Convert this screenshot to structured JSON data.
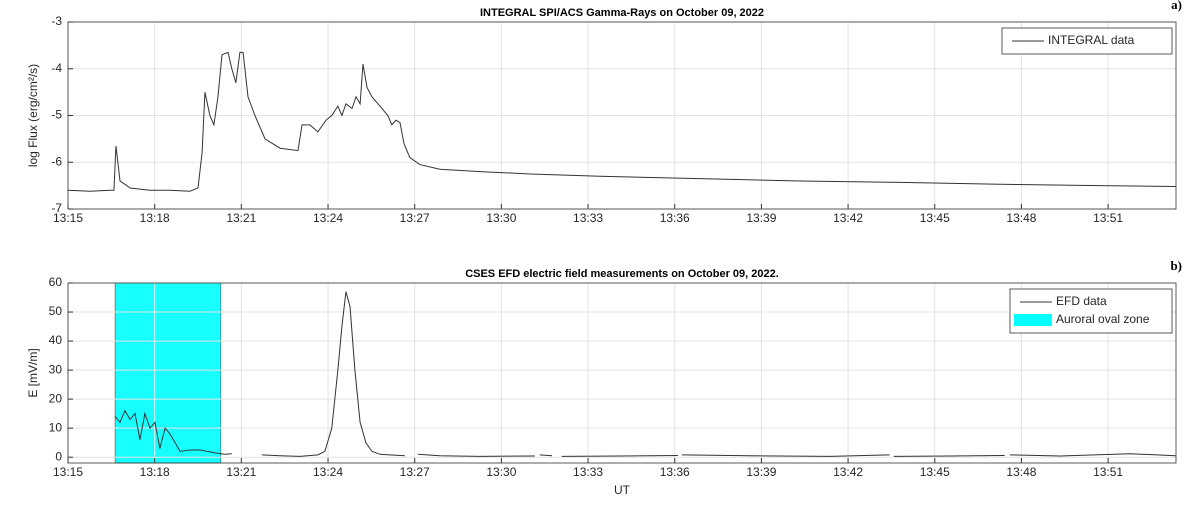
{
  "chart_data": [
    {
      "type": "line",
      "panel": "a)",
      "title": "INTEGRAL SPI/ACS Gamma-Rays on October 09, 2022",
      "y_label": "log Flux (erg/cm²/s)",
      "xlim": [
        795,
        833.35
      ],
      "xticks": [
        {
          "value": 795,
          "label": "13:15"
        },
        {
          "value": 798,
          "label": "13:18"
        },
        {
          "value": 801,
          "label": "13:21"
        },
        {
          "value": 804,
          "label": "13:24"
        },
        {
          "value": 807,
          "label": "13:27"
        },
        {
          "value": 810,
          "label": "13:30"
        },
        {
          "value": 813,
          "label": "13:33"
        },
        {
          "value": 816,
          "label": "13:36"
        },
        {
          "value": 819,
          "label": "13:39"
        },
        {
          "value": 822,
          "label": "13:42"
        },
        {
          "value": 825,
          "label": "13:45"
        },
        {
          "value": 828,
          "label": "13:48"
        },
        {
          "value": 831,
          "label": "13:51"
        }
      ],
      "ylim": [
        -7,
        -3
      ],
      "yticks": [
        -7,
        -6,
        -5,
        -4,
        -3
      ],
      "grid": true,
      "legend": "upper right",
      "series": [
        {
          "name": "INTEGRAL data",
          "color": "#333333",
          "x": [
            795.0,
            795.76,
            796.45,
            796.59,
            796.66,
            796.8,
            797.15,
            797.84,
            798.53,
            799.22,
            799.5,
            799.64,
            799.74,
            799.91,
            800.05,
            800.19,
            800.33,
            800.54,
            800.67,
            800.81,
            800.95,
            801.06,
            801.23,
            801.47,
            801.82,
            802.34,
            802.96,
            803.1,
            803.37,
            803.65,
            803.93,
            804.13,
            804.34,
            804.48,
            804.62,
            804.83,
            804.97,
            805.11,
            805.21,
            805.35,
            805.52,
            805.8,
            806.07,
            806.21,
            806.35,
            806.49,
            806.63,
            806.83,
            807.18,
            807.87,
            809.26,
            810.99,
            813.41,
            816.87,
            820.33,
            823.79,
            827.25,
            830.71,
            833.34
          ],
          "values": [
            -6.6,
            -6.62,
            -6.6,
            -6.6,
            -5.65,
            -6.4,
            -6.55,
            -6.6,
            -6.6,
            -6.62,
            -6.55,
            -5.8,
            -4.5,
            -5.0,
            -5.2,
            -4.6,
            -3.7,
            -3.65,
            -4.0,
            -4.3,
            -3.65,
            -3.65,
            -4.6,
            -5.0,
            -5.5,
            -5.7,
            -5.75,
            -5.2,
            -5.2,
            -5.35,
            -5.1,
            -5.0,
            -4.8,
            -5.0,
            -4.75,
            -4.85,
            -4.6,
            -4.75,
            -3.9,
            -4.4,
            -4.6,
            -4.8,
            -5.0,
            -5.2,
            -5.1,
            -5.15,
            -5.6,
            -5.9,
            -6.05,
            -6.15,
            -6.2,
            -6.25,
            -6.3,
            -6.35,
            -6.4,
            -6.43,
            -6.47,
            -6.5,
            -6.52
          ]
        }
      ]
    },
    {
      "type": "line",
      "panel": "b)",
      "title": "CSES EFD electric field measurements on October 09, 2022.",
      "x_label": "UT",
      "y_label": "E [mV/m]",
      "xlim": [
        795,
        833.35
      ],
      "xticks": [
        {
          "value": 795,
          "label": "13:15"
        },
        {
          "value": 798,
          "label": "13:18"
        },
        {
          "value": 801,
          "label": "13:21"
        },
        {
          "value": 804,
          "label": "13:24"
        },
        {
          "value": 807,
          "label": "13:27"
        },
        {
          "value": 810,
          "label": "13:30"
        },
        {
          "value": 813,
          "label": "13:33"
        },
        {
          "value": 816,
          "label": "13:36"
        },
        {
          "value": 819,
          "label": "13:39"
        },
        {
          "value": 822,
          "label": "13:42"
        },
        {
          "value": 825,
          "label": "13:45"
        },
        {
          "value": 828,
          "label": "13:48"
        },
        {
          "value": 831,
          "label": "13:51"
        }
      ],
      "ylim": [
        -2,
        60
      ],
      "yticks": [
        0,
        10,
        20,
        30,
        40,
        50,
        60
      ],
      "grid": true,
      "legend": "upper right",
      "shaded_regions": [
        {
          "name": "Auroral oval zone",
          "color": "#00ffff",
          "x": [
            796.63,
            800.29
          ]
        }
      ],
      "series": [
        {
          "name": "EFD data",
          "color": "#333333",
          "x": [
            796.63,
            796.8,
            796.97,
            797.15,
            797.32,
            797.49,
            797.66,
            797.84,
            798.01,
            798.18,
            798.36,
            798.53,
            798.88,
            799.22,
            799.57,
            800.09,
            800.43,
            800.67,
            801.12,
            801.71,
            802.34,
            803.03,
            803.65,
            803.89,
            804.13,
            804.34,
            804.48,
            804.62,
            804.76,
            804.93,
            805.11,
            805.31,
            805.52,
            805.8,
            806.14,
            806.66,
            806.83,
            807.11,
            807.87,
            809.26,
            811.16,
            811.23,
            811.33,
            811.75,
            812.02,
            812.09,
            814.1,
            816.11,
            816.18,
            816.25,
            818.6,
            821.37,
            823.44,
            823.51,
            823.58,
            825.52,
            827.42,
            827.53,
            827.6,
            829.33,
            831.75,
            833.34
          ],
          "values": [
            14,
            12,
            16,
            13,
            15,
            6,
            15,
            10,
            12,
            3,
            10,
            8,
            2,
            2.5,
            2.5,
            1.5,
            1,
            1.2,
            null,
            0.8,
            0.5,
            0.3,
            0.8,
            2,
            10,
            30,
            45,
            57,
            52,
            30,
            12,
            5,
            2,
            1,
            0.8,
            0.5,
            null,
            1,
            0.5,
            0.3,
            0.4,
            null,
            0.8,
            0.5,
            null,
            0.3,
            0.4,
            0.6,
            null,
            0.8,
            0.5,
            0.3,
            0.8,
            null,
            0.3,
            0.4,
            0.6,
            null,
            0.8,
            0.4,
            1.2,
            0.5
          ]
        }
      ]
    }
  ]
}
